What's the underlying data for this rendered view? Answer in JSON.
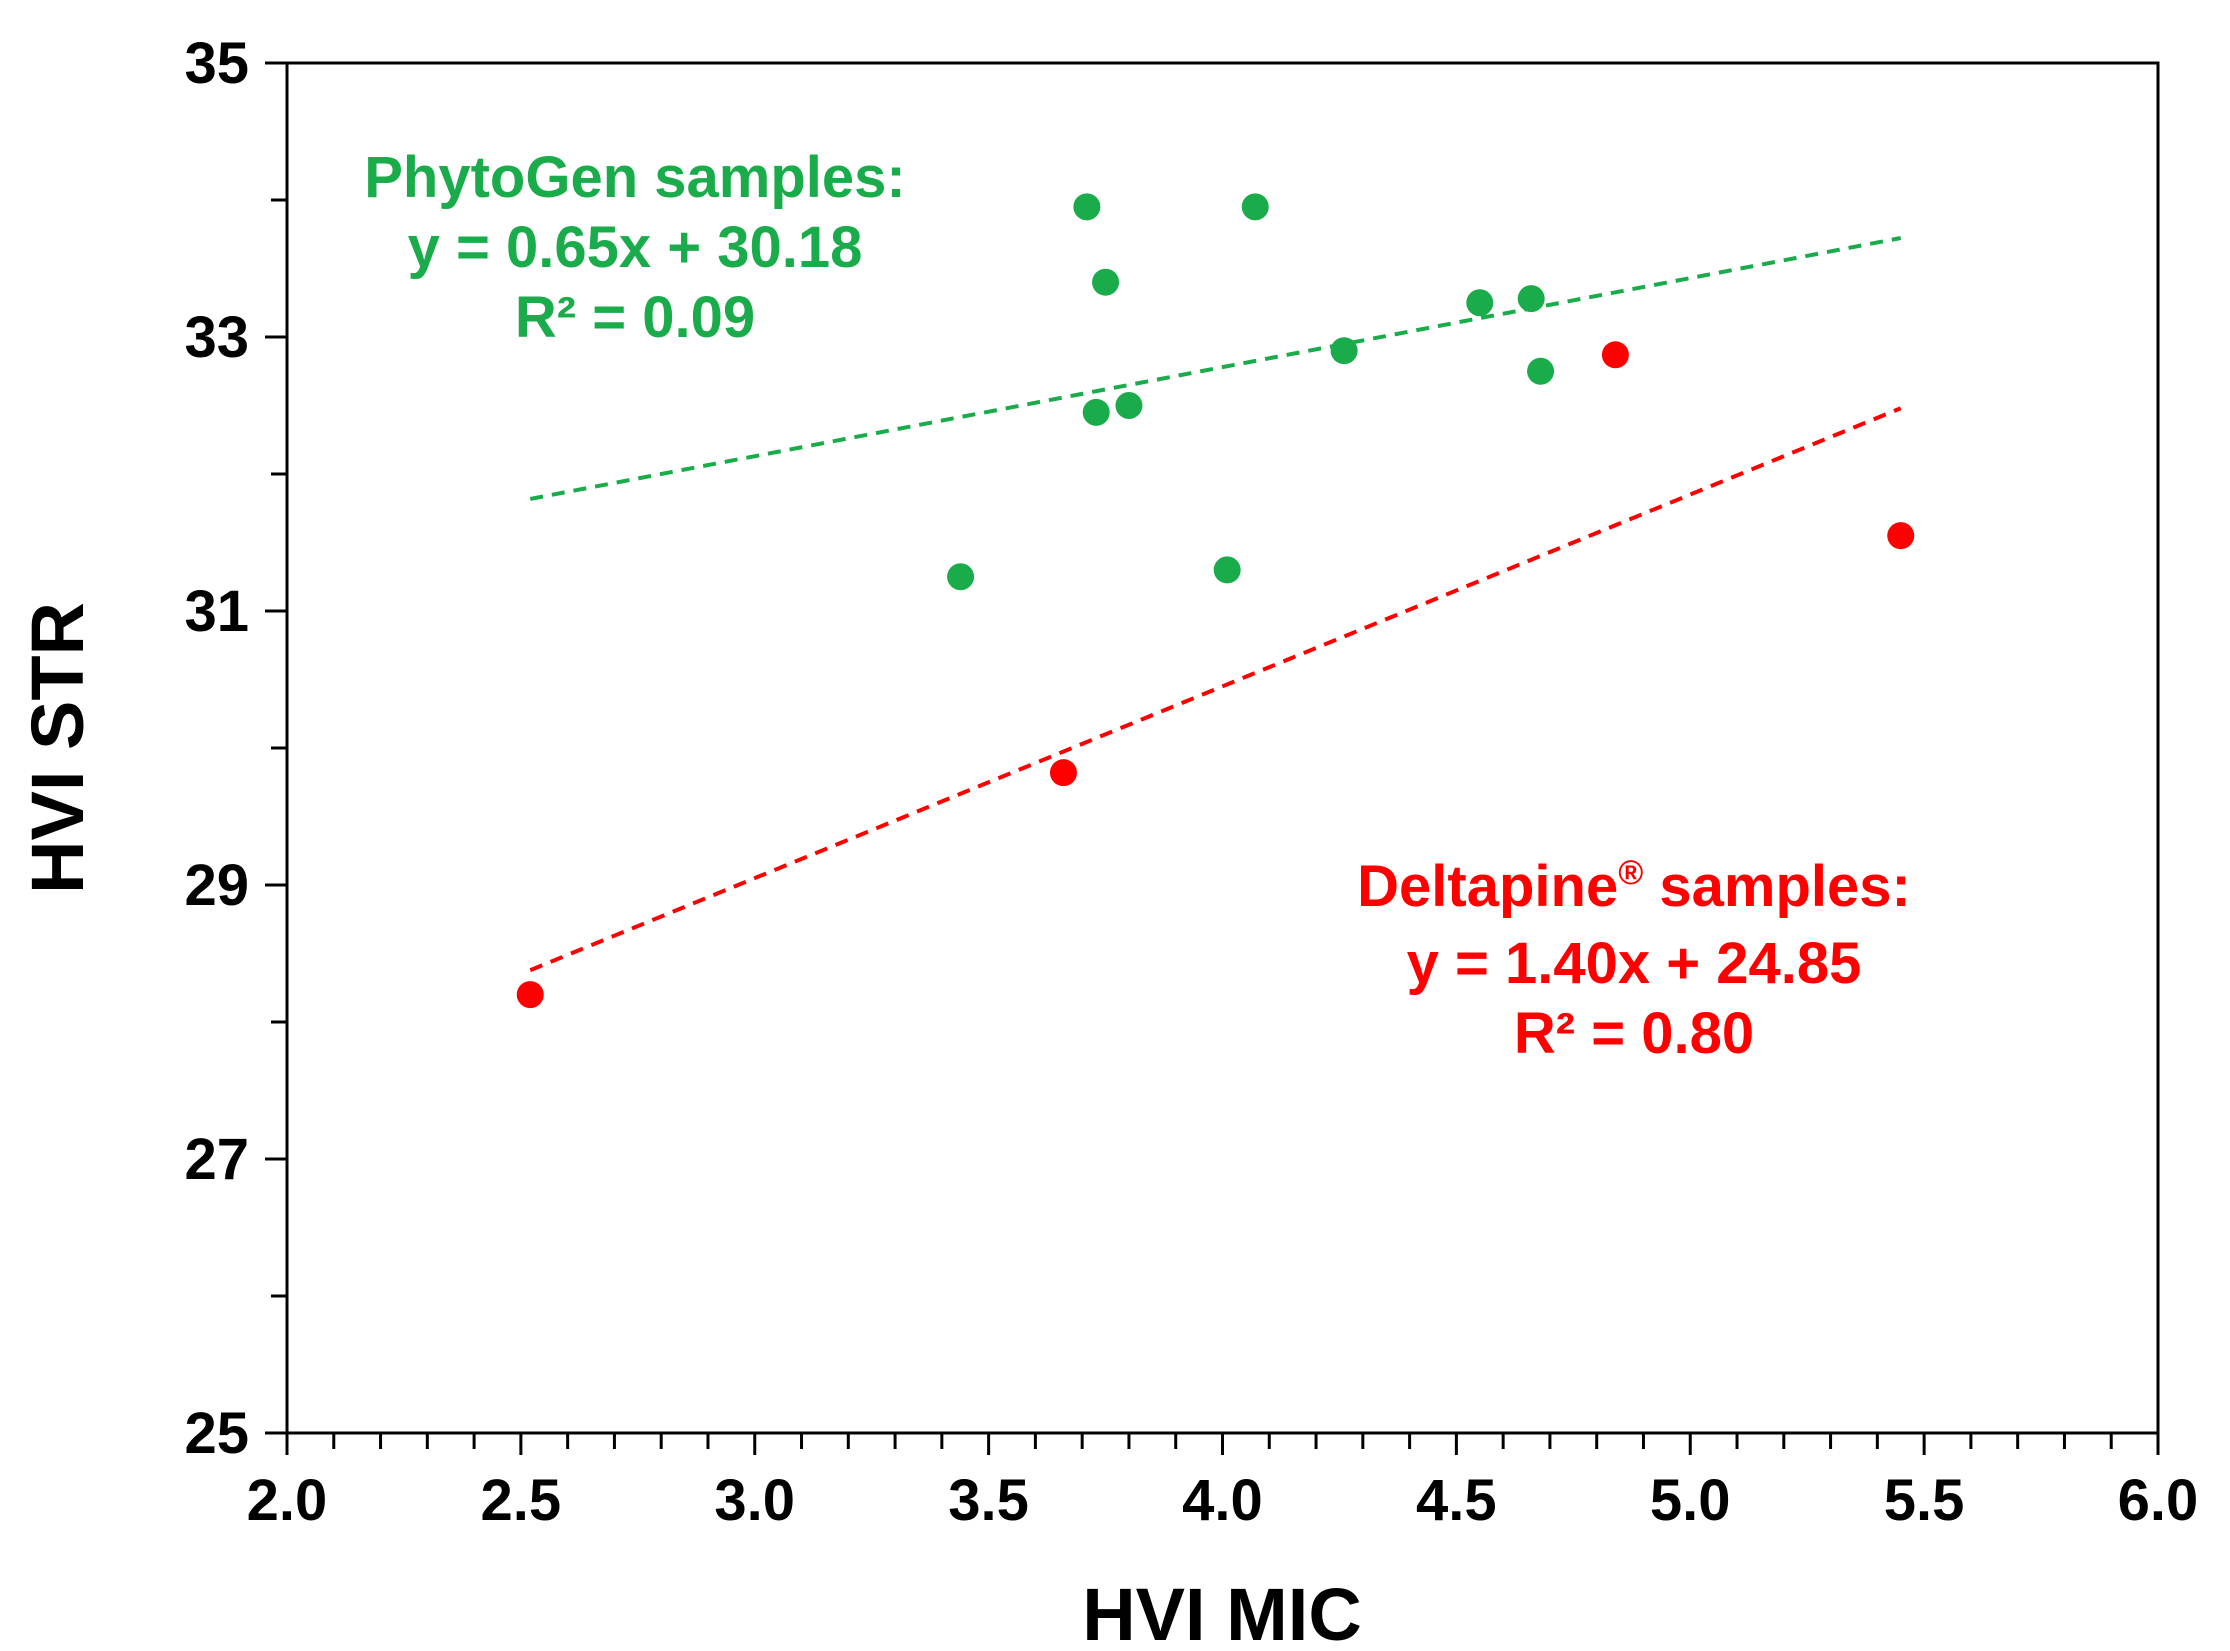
{
  "chart_data": {
    "type": "scatter",
    "title": "",
    "xlabel": "HVI MIC",
    "ylabel": "HVI STR",
    "xlim": [
      2.0,
      6.0
    ],
    "ylim": [
      25,
      35
    ],
    "x_ticks": [
      "2.0",
      "2.5",
      "3.0",
      "3.5",
      "4.0",
      "4.5",
      "5.0",
      "5.5",
      "6.0"
    ],
    "x_tick_values": [
      2.0,
      2.5,
      3.0,
      3.5,
      4.0,
      4.5,
      5.0,
      5.5,
      6.0
    ],
    "y_ticks": [
      "25",
      "27",
      "29",
      "31",
      "33",
      "35"
    ],
    "y_tick_values": [
      25,
      27,
      29,
      31,
      33,
      35
    ],
    "grid": false,
    "series": [
      {
        "name": "PhytoGen samples",
        "color": "#1aab4b",
        "points": [
          {
            "x": 3.44,
            "y": 31.25
          },
          {
            "x": 3.71,
            "y": 33.95
          },
          {
            "x": 3.73,
            "y": 32.45
          },
          {
            "x": 3.75,
            "y": 33.4
          },
          {
            "x": 3.8,
            "y": 32.5
          },
          {
            "x": 4.01,
            "y": 31.3
          },
          {
            "x": 4.07,
            "y": 33.95
          },
          {
            "x": 4.26,
            "y": 32.9
          },
          {
            "x": 4.55,
            "y": 33.25
          },
          {
            "x": 4.66,
            "y": 33.28
          },
          {
            "x": 4.68,
            "y": 32.75
          }
        ],
        "trendline": {
          "slope": 0.65,
          "intercept": 30.18,
          "x_range": [
            2.52,
            5.45
          ]
        },
        "annotation": {
          "title": "PhytoGen samples:",
          "equation": "y = 0.65x + 30.18",
          "r2": "R² = 0.09"
        }
      },
      {
        "name": "Deltapine® samples",
        "color": "#ff0000",
        "points": [
          {
            "x": 2.52,
            "y": 28.2
          },
          {
            "x": 3.66,
            "y": 29.82
          },
          {
            "x": 4.84,
            "y": 32.87
          },
          {
            "x": 5.45,
            "y": 31.55
          }
        ],
        "trendline": {
          "slope": 1.4,
          "intercept": 24.85,
          "x_range": [
            2.52,
            5.45
          ]
        },
        "annotation": {
          "title_main": "Deltapine",
          "title_sup": "®",
          "title_rest": " samples:",
          "equation": "y = 1.40x + 24.85",
          "r2": "R² = 0.80"
        }
      }
    ]
  }
}
